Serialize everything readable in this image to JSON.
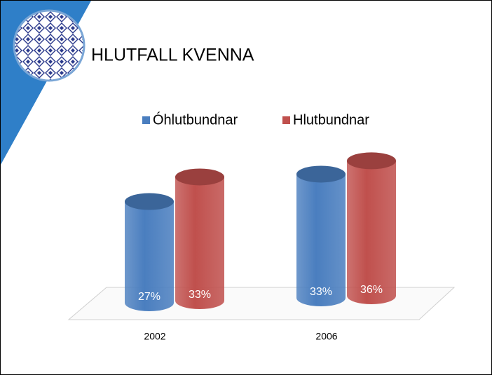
{
  "chart_data": {
    "type": "cylinder-bar",
    "title": "HLUTFALL KVENNA",
    "categories": [
      "2002",
      "2006"
    ],
    "series": [
      {
        "name": "Óhlutbundnar",
        "color": "#4a7ebf",
        "values": [
          27,
          33
        ],
        "value_labels": [
          "27%",
          "33%"
        ]
      },
      {
        "name": "Hlutbundnar",
        "color": "#c0504d",
        "values": [
          33,
          36
        ],
        "value_labels": [
          "33%",
          "36%"
        ]
      }
    ],
    "legend": "top"
  }
}
